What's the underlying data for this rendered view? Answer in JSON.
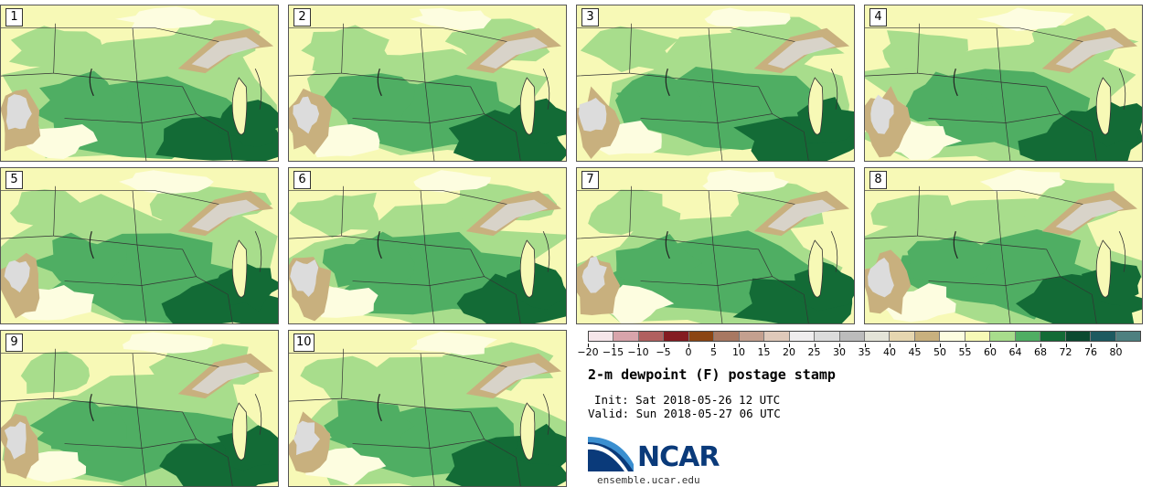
{
  "title": "2-m dewpoint (F) postage stamp",
  "init": "Init: Sat 2018-05-26 12 UTC",
  "valid": "Valid: Sun 2018-05-27 06 UTC",
  "logo": {
    "name": "NCAR",
    "url": "ensemble.ucar.edu"
  },
  "stamps": [
    {
      "label": "1"
    },
    {
      "label": "2"
    },
    {
      "label": "3"
    },
    {
      "label": "4"
    },
    {
      "label": "5"
    },
    {
      "label": "6"
    },
    {
      "label": "7"
    },
    {
      "label": "8"
    },
    {
      "label": "9"
    },
    {
      "label": "10"
    }
  ],
  "colorbar": {
    "colors": [
      "#f6e6ea",
      "#d8a4ab",
      "#b1605f",
      "#841c22",
      "#8b4513",
      "#a87862",
      "#c4a08f",
      "#dfc9ba",
      "#efedee",
      "#dcdcdc",
      "#bcbcbc",
      "#e4e4d8",
      "#e6d6b0",
      "#c8b07e",
      "#fdfde0",
      "#f7f9b6",
      "#a8dd8c",
      "#4fae63",
      "#136b36",
      "#0b4a30",
      "#1d5a60",
      "#4e8080"
    ],
    "ticks": [
      "−20",
      "−15",
      "−10",
      "−5",
      "0",
      "5",
      "10",
      "15",
      "20",
      "25",
      "30",
      "35",
      "40",
      "45",
      "50",
      "55",
      "60",
      "64",
      "68",
      "72",
      "76",
      "80"
    ]
  }
}
